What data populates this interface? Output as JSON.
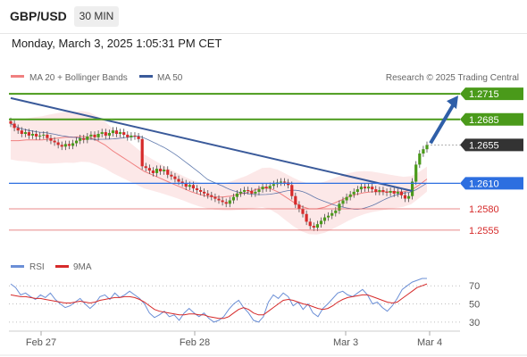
{
  "header": {
    "symbol": "GBP/USD",
    "timeframe": "30 MIN",
    "datetime": "Monday, March 3, 2025 1:05:31 PM CET"
  },
  "legend": {
    "bb": "MA 20 + Bollinger Bands",
    "ma50": "MA 50",
    "credit": "Research © 2025 Trading Central",
    "rsi": "RSI",
    "rsi_ma": "9MA"
  },
  "colors": {
    "resistance": "#4a9a1a",
    "support": "#2d6fe0",
    "price": "#333333",
    "minor": "#e06060",
    "bb": "#f08080",
    "ma50": "#3a5a9a",
    "rsi": "#6b8fd6",
    "rsi_ma": "#d62a2a",
    "arrow": "#2f5fa8"
  },
  "chart_data": [
    {
      "type": "line",
      "ylim": [
        1.2535,
        1.2735
      ],
      "x_ticks": [
        "Feb 27",
        "Feb 28",
        "Mar 3",
        "Mar 4"
      ],
      "levels": [
        {
          "value": "1.2715",
          "kind": "resistance"
        },
        {
          "value": "1.2685",
          "kind": "resistance"
        },
        {
          "value": "1.2655",
          "kind": "price"
        },
        {
          "value": "1.2610",
          "kind": "support"
        },
        {
          "value": "1.2580",
          "kind": "minor"
        },
        {
          "value": "1.2555",
          "kind": "minor"
        }
      ],
      "trendline": [
        [
          0,
          1.271
        ],
        [
          110,
          1.2601
        ]
      ],
      "close": [
        1.268,
        1.2675,
        1.2672,
        1.2668,
        1.267,
        1.2666,
        1.2668,
        1.2665,
        1.2666,
        1.2667,
        1.2663,
        1.266,
        1.2658,
        1.2655,
        1.2653,
        1.2656,
        1.2654,
        1.2657,
        1.266,
        1.2663,
        1.2661,
        1.2665,
        1.2667,
        1.2664,
        1.2668,
        1.267,
        1.2666,
        1.2669,
        1.2672,
        1.2668,
        1.267,
        1.2667,
        1.2664,
        1.2666,
        1.2665,
        1.2662,
        1.263,
        1.2628,
        1.2625,
        1.2622,
        1.2627,
        1.2624,
        1.2626,
        1.262,
        1.2618,
        1.2615,
        1.2612,
        1.261,
        1.2606,
        1.2608,
        1.2604,
        1.2602,
        1.26,
        1.2598,
        1.2596,
        1.2594,
        1.2592,
        1.259,
        1.2588,
        1.2586,
        1.259,
        1.2594,
        1.2598,
        1.26,
        1.2602,
        1.2601,
        1.2598,
        1.26,
        1.2603,
        1.2606,
        1.2604,
        1.2607,
        1.2609,
        1.2611,
        1.2612,
        1.2611,
        1.2608,
        1.2595,
        1.2585,
        1.258,
        1.2574,
        1.2565,
        1.256,
        1.2558,
        1.2562,
        1.2566,
        1.257,
        1.2572,
        1.2575,
        1.2578,
        1.2586,
        1.259,
        1.2594,
        1.2597,
        1.26,
        1.2603,
        1.2606,
        1.2604,
        1.2606,
        1.2603,
        1.26,
        1.2602,
        1.26,
        1.2599,
        1.2601,
        1.2598,
        1.26,
        1.2596,
        1.2592,
        1.2595,
        1.2612,
        1.2632,
        1.2645,
        1.265,
        1.2655
      ],
      "ma20_approx": [
        1.266,
        1.266,
        1.2661,
        1.2661,
        1.2661,
        1.2662,
        1.2663,
        1.2664,
        1.2664,
        1.2665,
        1.2664,
        1.266,
        1.2655,
        1.2648,
        1.2642,
        1.2636,
        1.263,
        1.2624,
        1.262,
        1.2616,
        1.2612,
        1.2608,
        1.2604,
        1.26,
        1.2597,
        1.2595,
        1.2594,
        1.2594,
        1.2595,
        1.2597,
        1.2599,
        1.2602,
        1.2605,
        1.2604,
        1.26,
        1.2594,
        1.2588,
        1.2583,
        1.258,
        1.258,
        1.2582,
        1.2586,
        1.259,
        1.2594,
        1.2597,
        1.2599,
        1.26,
        1.26,
        1.26,
        1.26,
        1.26,
        1.2602,
        1.2608,
        1.2615
      ]
    },
    {
      "type": "line",
      "ylim": [
        25,
        80
      ],
      "y_ticks": [
        "70",
        "50",
        "30"
      ],
      "rsi": [
        72,
        68,
        60,
        62,
        58,
        55,
        60,
        57,
        62,
        55,
        50,
        46,
        48,
        52,
        56,
        50,
        45,
        50,
        58,
        60,
        55,
        62,
        57,
        60,
        64,
        60,
        56,
        50,
        40,
        35,
        38,
        42,
        36,
        38,
        32,
        40,
        45,
        40,
        36,
        40,
        34,
        30,
        32,
        36,
        44,
        50,
        54,
        46,
        40,
        32,
        30,
        36,
        52,
        60,
        56,
        62,
        58,
        48,
        52,
        44,
        50,
        40,
        36,
        45,
        50,
        56,
        62,
        64,
        60,
        58,
        62,
        66,
        60,
        50,
        52,
        46,
        42,
        48,
        56,
        66,
        70,
        74,
        76,
        78,
        78
      ],
      "ma9": [
        60,
        59,
        58,
        58,
        57,
        56,
        56,
        55,
        54,
        53,
        52,
        51,
        51,
        52,
        53,
        52,
        51,
        52,
        54,
        55,
        56,
        57,
        57,
        58,
        58,
        57,
        55,
        52,
        48,
        44,
        42,
        41,
        40,
        39,
        38,
        38,
        39,
        39,
        38,
        38,
        36,
        35,
        34,
        34,
        36,
        40,
        44,
        46,
        44,
        40,
        38,
        38,
        42,
        46,
        50,
        54,
        55,
        54,
        52,
        50,
        49,
        47,
        45,
        44,
        45,
        48,
        52,
        55,
        57,
        58,
        59,
        60,
        60,
        58,
        56,
        54,
        52,
        51,
        52,
        56,
        60,
        64,
        68,
        70,
        72
      ]
    }
  ]
}
